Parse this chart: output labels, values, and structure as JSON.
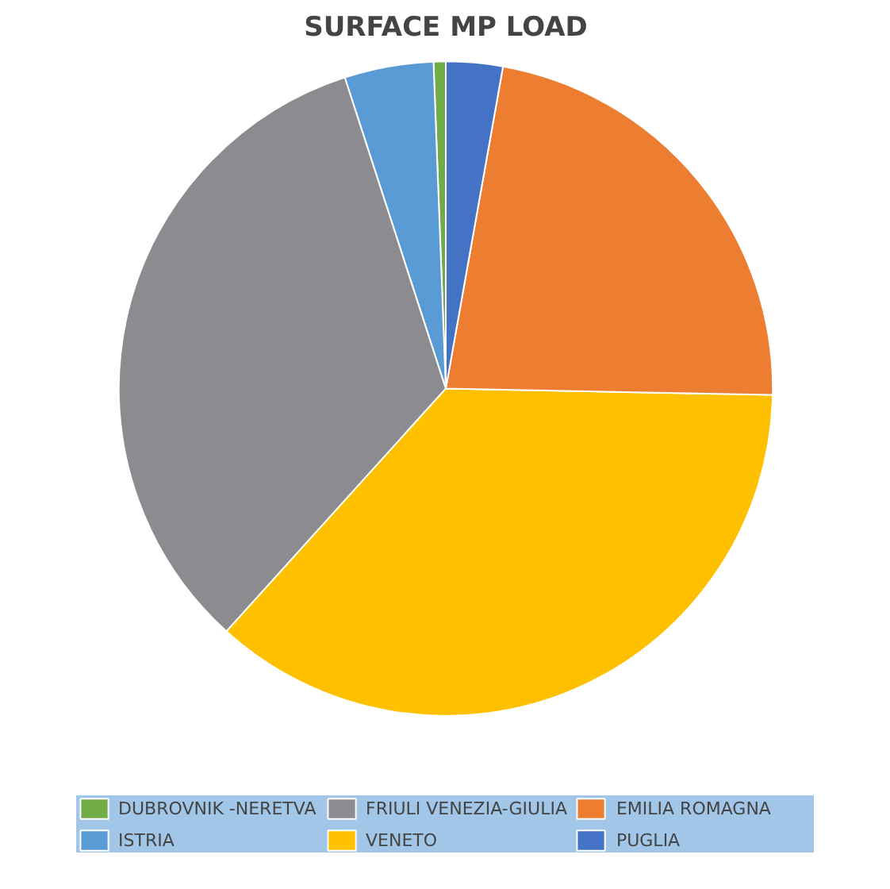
{
  "chart_data": {
    "type": "pie",
    "title": "SURFACE MP LOAD",
    "categories": [
      "DUBROVNIK -NERETVA",
      "ISTRIA",
      "FRIULI VENEZIA-GIULIA",
      "VENETO",
      "EMILIA ROMAGNA",
      "PUGLIA"
    ],
    "values": [
      0.6,
      4.4,
      33.3,
      36.4,
      22.5,
      2.8
    ],
    "colors": [
      "#70ad47",
      "#5b9bd5",
      "#8c8c90",
      "#ffc000",
      "#ed7d31",
      "#4472c4"
    ],
    "legend": "bottom"
  }
}
